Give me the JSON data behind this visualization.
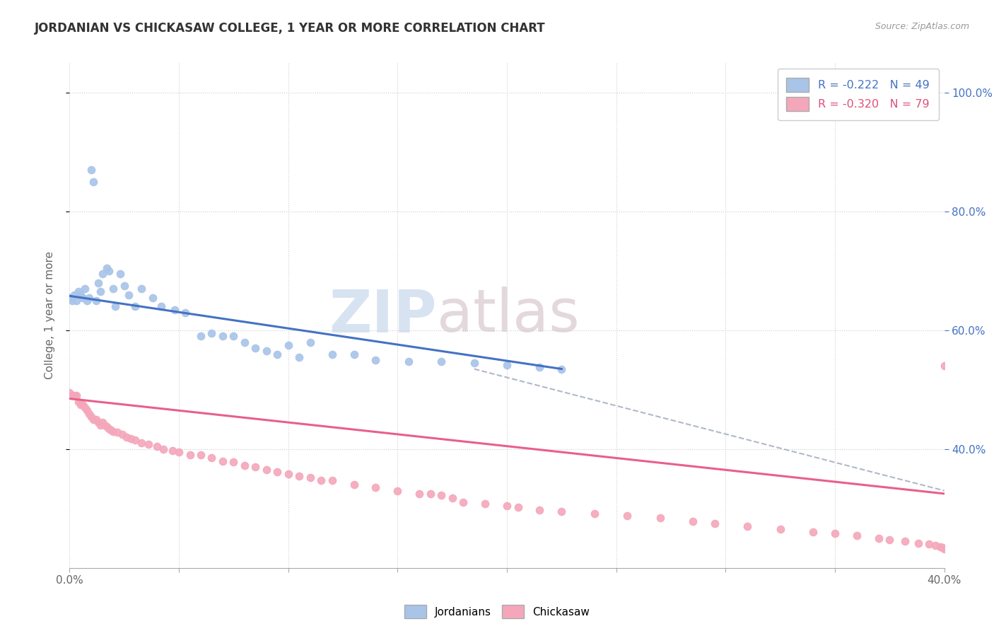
{
  "title": "JORDANIAN VS CHICKASAW COLLEGE, 1 YEAR OR MORE CORRELATION CHART",
  "source": "Source: ZipAtlas.com",
  "ylabel": "College, 1 year or more",
  "xlim": [
    0.0,
    0.4
  ],
  "ylim": [
    0.2,
    1.05
  ],
  "xticks": [
    0.0,
    0.05,
    0.1,
    0.15,
    0.2,
    0.25,
    0.3,
    0.35,
    0.4
  ],
  "yticks_right": [
    0.4,
    0.6,
    0.8,
    1.0
  ],
  "yticklabels_right": [
    "40.0%",
    "60.0%",
    "80.0%",
    "100.0%"
  ],
  "legend_blue_text": "R = -0.222   N = 49",
  "legend_pink_text": "R = -0.320   N = 79",
  "watermark_zip": "ZIP",
  "watermark_atlas": "atlas",
  "blue_color": "#a8c4e8",
  "pink_color": "#f4a7bb",
  "blue_line_color": "#4472c4",
  "pink_line_color": "#e8608a",
  "dashed_line_color": "#b0b8c8",
  "jordanians_scatter_x": [
    0.0,
    0.001,
    0.002,
    0.003,
    0.004,
    0.005,
    0.006,
    0.007,
    0.008,
    0.009,
    0.01,
    0.011,
    0.012,
    0.013,
    0.014,
    0.015,
    0.017,
    0.018,
    0.02,
    0.021,
    0.023,
    0.025,
    0.027,
    0.03,
    0.033,
    0.038,
    0.042,
    0.048,
    0.053,
    0.06,
    0.065,
    0.07,
    0.075,
    0.08,
    0.085,
    0.09,
    0.095,
    0.1,
    0.105,
    0.11,
    0.12,
    0.13,
    0.14,
    0.155,
    0.17,
    0.185,
    0.2,
    0.215,
    0.225
  ],
  "jordanians_scatter_y": [
    0.655,
    0.65,
    0.66,
    0.65,
    0.665,
    0.66,
    0.655,
    0.67,
    0.65,
    0.655,
    0.87,
    0.85,
    0.65,
    0.68,
    0.665,
    0.695,
    0.705,
    0.7,
    0.67,
    0.64,
    0.695,
    0.675,
    0.66,
    0.64,
    0.67,
    0.655,
    0.64,
    0.635,
    0.63,
    0.59,
    0.595,
    0.59,
    0.59,
    0.58,
    0.57,
    0.565,
    0.56,
    0.575,
    0.555,
    0.58,
    0.56,
    0.56,
    0.55,
    0.548,
    0.548,
    0.545,
    0.542,
    0.538,
    0.535
  ],
  "chickasaw_scatter_x": [
    0.0,
    0.001,
    0.002,
    0.003,
    0.004,
    0.005,
    0.006,
    0.007,
    0.008,
    0.009,
    0.01,
    0.011,
    0.012,
    0.013,
    0.014,
    0.015,
    0.016,
    0.017,
    0.018,
    0.019,
    0.02,
    0.022,
    0.024,
    0.026,
    0.028,
    0.03,
    0.033,
    0.036,
    0.04,
    0.043,
    0.047,
    0.05,
    0.055,
    0.06,
    0.065,
    0.07,
    0.075,
    0.08,
    0.085,
    0.09,
    0.095,
    0.1,
    0.105,
    0.11,
    0.115,
    0.12,
    0.13,
    0.14,
    0.15,
    0.16,
    0.165,
    0.17,
    0.175,
    0.18,
    0.19,
    0.2,
    0.205,
    0.215,
    0.225,
    0.24,
    0.255,
    0.27,
    0.285,
    0.295,
    0.31,
    0.325,
    0.34,
    0.35,
    0.36,
    0.37,
    0.375,
    0.382,
    0.388,
    0.393,
    0.396,
    0.398,
    0.399,
    0.4,
    0.4
  ],
  "chickasaw_scatter_y": [
    0.495,
    0.49,
    0.49,
    0.49,
    0.48,
    0.475,
    0.475,
    0.47,
    0.465,
    0.46,
    0.455,
    0.45,
    0.45,
    0.445,
    0.44,
    0.445,
    0.44,
    0.438,
    0.435,
    0.432,
    0.43,
    0.428,
    0.425,
    0.42,
    0.418,
    0.415,
    0.41,
    0.408,
    0.405,
    0.4,
    0.398,
    0.395,
    0.39,
    0.39,
    0.385,
    0.38,
    0.378,
    0.372,
    0.37,
    0.365,
    0.362,
    0.358,
    0.355,
    0.352,
    0.348,
    0.348,
    0.34,
    0.335,
    0.33,
    0.325,
    0.325,
    0.322,
    0.318,
    0.31,
    0.308,
    0.305,
    0.302,
    0.298,
    0.295,
    0.292,
    0.288,
    0.284,
    0.278,
    0.275,
    0.27,
    0.265,
    0.26,
    0.258,
    0.254,
    0.25,
    0.248,
    0.245,
    0.242,
    0.24,
    0.238,
    0.236,
    0.234,
    0.232,
    0.54
  ],
  "blue_trendline_x": [
    0.0,
    0.225
  ],
  "blue_trendline_y": [
    0.658,
    0.535
  ],
  "pink_trendline_x": [
    0.0,
    0.4
  ],
  "pink_trendline_y": [
    0.485,
    0.325
  ],
  "dashed_trendline_x": [
    0.185,
    0.4
  ],
  "dashed_trendline_y": [
    0.535,
    0.33
  ],
  "background_color": "#ffffff",
  "grid_color": "#cccccc"
}
